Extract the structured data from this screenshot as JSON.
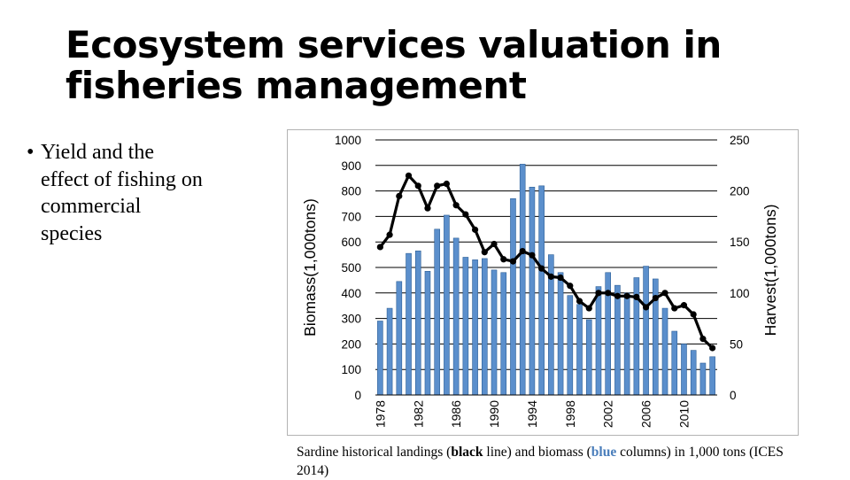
{
  "slide": {
    "title_line1": "Ecosystem services valuation in",
    "title_line2": "fisheries management",
    "bullet_marker": "•",
    "bullet_text": "Yield and the effect of fishing on commercial species"
  },
  "caption": {
    "part1": "Sardine historical landings (",
    "black_word": "black",
    "part2": " line) and biomass (",
    "blue_word": "blue",
    "part3": " columns) in 1,000 tons (ICES 2014)"
  },
  "colors": {
    "bar_fill": "#5b8fcc",
    "bar_edge": "#2d5f96",
    "line": "#000000",
    "blue_text": "#4a7ebb"
  },
  "chart_data": {
    "type": "bar",
    "ylabel": "Biomass(1,000tons)",
    "y2label": "Harvest(1,000tons)",
    "ylim": [
      0,
      1000
    ],
    "y2lim": [
      0,
      250
    ],
    "yticks": [
      0,
      100,
      200,
      300,
      400,
      500,
      600,
      700,
      800,
      900,
      1000
    ],
    "y2ticks": [
      0,
      50,
      100,
      150,
      200,
      250
    ],
    "xtick_labels": [
      "1978",
      "1982",
      "1986",
      "1990",
      "1994",
      "1998",
      "2002",
      "2006",
      "2010"
    ],
    "grid": true,
    "x": [
      1978,
      1979,
      1980,
      1981,
      1982,
      1983,
      1984,
      1985,
      1986,
      1987,
      1988,
      1989,
      1990,
      1991,
      1992,
      1993,
      1994,
      1995,
      1996,
      1997,
      1998,
      1999,
      2000,
      2001,
      2002,
      2003,
      2004,
      2005,
      2006,
      2007,
      2008,
      2009,
      2010,
      2011,
      2012,
      2013
    ],
    "series": [
      {
        "name": "biomass",
        "type": "bar",
        "axis": "left",
        "values": [
          290,
          340,
          445,
          555,
          565,
          485,
          650,
          705,
          615,
          540,
          530,
          535,
          490,
          480,
          770,
          905,
          815,
          820,
          550,
          480,
          390,
          355,
          295,
          425,
          480,
          430,
          400,
          460,
          505,
          455,
          340,
          250,
          200,
          175,
          125,
          150
        ]
      },
      {
        "name": "landings",
        "type": "line",
        "axis": "right",
        "values": [
          145,
          157,
          195,
          215,
          205,
          183,
          205,
          207,
          186,
          177,
          162,
          140,
          148,
          133,
          131,
          141,
          137,
          124,
          116,
          115,
          107,
          92,
          85,
          100,
          100,
          97,
          97,
          96,
          86,
          95,
          100,
          85,
          88,
          79,
          55,
          46
        ]
      }
    ]
  }
}
